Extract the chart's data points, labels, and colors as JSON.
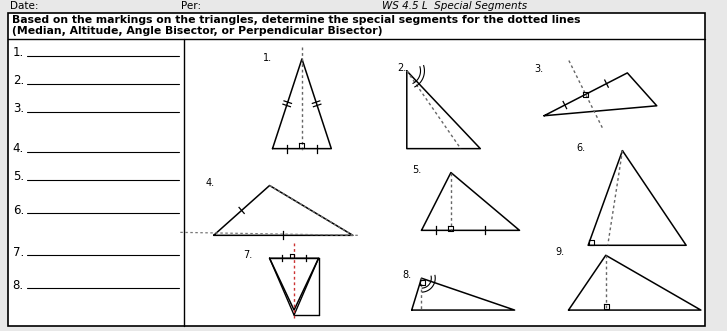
{
  "title_line1": "Based on the markings on the triangles, determine the special segments for the dotted lines",
  "title_line2": "(Median, Altitude, Angle Bisector, or Perpendicular Bisector)",
  "header_left": "Date:",
  "header_per": "Per:",
  "header_ws": "WS 4.5 L  Special Segments",
  "answer_labels": [
    "1.",
    "2.",
    "3.",
    "4.",
    "5.",
    "6.",
    "7.",
    "8."
  ],
  "bg_color": "#f0f0f0",
  "dot_color": "#888888",
  "red_dot_color": "#cc4444"
}
